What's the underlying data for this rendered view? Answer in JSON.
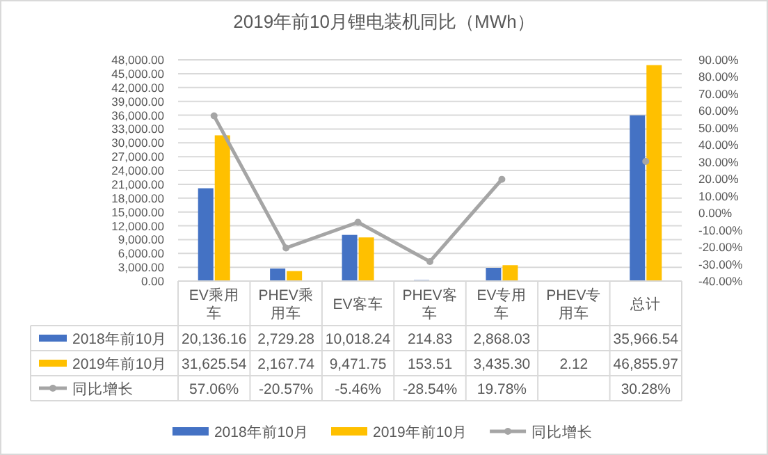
{
  "chart_data": {
    "type": "bar",
    "title": "2019年前10月锂电装机同比（MWh）",
    "categories": [
      "EV乘用车",
      "PHEV乘用车",
      "EV客车",
      "PHEV客车",
      "EV专用车",
      "PHEV专用车",
      "总计"
    ],
    "series": [
      {
        "name": "2018年前10月",
        "color": "#4472c4",
        "values": [
          20136.16,
          2729.28,
          10018.24,
          214.83,
          2868.03,
          null,
          35966.54
        ],
        "value_labels": [
          "20,136.16",
          "2,729.28",
          "10,018.24",
          "214.83",
          "2,868.03",
          null,
          "35,966.54"
        ]
      },
      {
        "name": "2019年前10月",
        "color": "#ffc000",
        "values": [
          31625.54,
          2167.74,
          9471.75,
          153.51,
          3435.3,
          2.12,
          46855.97
        ],
        "value_labels": [
          "31,625.54",
          "2,167.74",
          "9,471.75",
          "153.51",
          "3,435.30",
          "2.12",
          "46,855.97"
        ]
      },
      {
        "name": "同比增长",
        "type": "line",
        "axis": "y2",
        "marker": "circle",
        "color": "#a5a5a5",
        "values": [
          57.06,
          -20.57,
          -5.46,
          -28.54,
          19.78,
          null,
          30.28
        ],
        "value_labels": [
          "57.06%",
          "-20.57%",
          "-5.46%",
          "-28.54%",
          "19.78%",
          null,
          "30.28%"
        ]
      }
    ],
    "ylim": [
      0,
      48000
    ],
    "yticks": [
      {
        "value": 0,
        "label": "0.00"
      },
      {
        "value": 3000,
        "label": "3,000.00"
      },
      {
        "value": 6000,
        "label": "6,000.00"
      },
      {
        "value": 9000,
        "label": "9,000.00"
      },
      {
        "value": 12000,
        "label": "12,000.00"
      },
      {
        "value": 15000,
        "label": "15,000.00"
      },
      {
        "value": 18000,
        "label": "18,000.00"
      },
      {
        "value": 21000,
        "label": "21,000.00"
      },
      {
        "value": 24000,
        "label": "24,000.00"
      },
      {
        "value": 27000,
        "label": "27,000.00"
      },
      {
        "value": 30000,
        "label": "30,000.00"
      },
      {
        "value": 33000,
        "label": "33,000.00"
      },
      {
        "value": 36000,
        "label": "36,000.00"
      },
      {
        "value": 39000,
        "label": "39,000.00"
      },
      {
        "value": 42000,
        "label": "42,000.00"
      },
      {
        "value": 45000,
        "label": "45,000.00"
      },
      {
        "value": 48000,
        "label": "48,000.00"
      }
    ],
    "y2lim": [
      -40,
      90
    ],
    "y2ticks": [
      {
        "value": -40,
        "label": "-40.00%"
      },
      {
        "value": -30,
        "label": "-30.00%"
      },
      {
        "value": -20,
        "label": "-20.00%"
      },
      {
        "value": -10,
        "label": "-10.00%"
      },
      {
        "value": 0,
        "label": "0.00%"
      },
      {
        "value": 10,
        "label": "10.00%"
      },
      {
        "value": 20,
        "label": "20.00%"
      },
      {
        "value": 30,
        "label": "30.00%"
      },
      {
        "value": 40,
        "label": "40.00%"
      },
      {
        "value": 50,
        "label": "50.00%"
      },
      {
        "value": 60,
        "label": "60.00%"
      },
      {
        "value": 70,
        "label": "70.00%"
      },
      {
        "value": 80,
        "label": "80.00%"
      },
      {
        "value": 90,
        "label": "90.00%"
      }
    ],
    "grid": "y",
    "legend": "bottom"
  }
}
